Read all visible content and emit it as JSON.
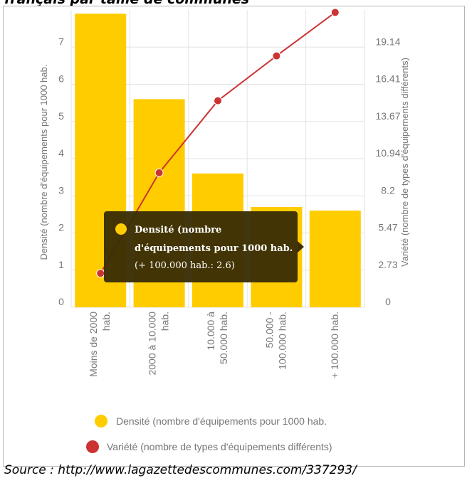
{
  "title": "français par taille de communes",
  "source": "Source : http://www.lagazettedescommunes.com/337293/",
  "colors": {
    "bar": "#ffcc00",
    "line": "#cc3333",
    "tooltip_bg": "#3a2e05",
    "grid": "#e3e3e3",
    "text": "#777777"
  },
  "chart_data": {
    "type": "bar",
    "categories": [
      [
        "Moins de 2000",
        "hab."
      ],
      [
        "2000 à 10.000",
        "hab."
      ],
      [
        "10.000 à",
        "50.000 hab."
      ],
      [
        "50.000 -",
        "100.000 hab."
      ],
      [
        "+ 100.000 hab."
      ]
    ],
    "left_axis": {
      "label": "Densité (nombre d'équipements pour 1000 hab.",
      "ticks": [
        "0",
        "1",
        "2",
        "3",
        "4",
        "5",
        "6",
        "7"
      ],
      "range": [
        0,
        8
      ]
    },
    "right_axis": {
      "label": "Variété (nombre de types d'équipements différents)",
      "ticks": [
        "0",
        "2.73",
        "5.47",
        "8.2",
        "10.94",
        "13.67",
        "16.41",
        "19.14"
      ],
      "range": [
        0,
        21.88
      ]
    },
    "series": [
      {
        "name": "Densité (nombre d'équipements pour 1000 hab.",
        "type": "bar",
        "axis": "left",
        "values": [
          7.9,
          5.6,
          3.6,
          2.7,
          2.6
        ]
      },
      {
        "name": "Variété (nombre de types d'équipements différents)",
        "type": "line",
        "axis": "right",
        "values": [
          2.5,
          9.9,
          15.2,
          18.5,
          21.7
        ]
      }
    ],
    "grid": true,
    "legend": "bottom"
  },
  "tooltip": {
    "lines": [
      "Densité (nombre",
      "d'équipements pour 1000 hab."
    ],
    "value_line": "(+ 100.000 hab.: 2.6)"
  }
}
